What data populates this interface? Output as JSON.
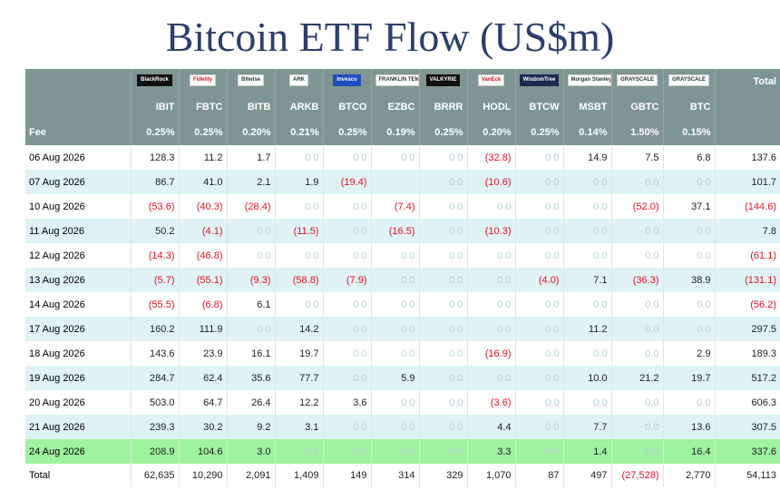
{
  "title": "Bitcoin ETF Flow (US$m)",
  "chart_data": {
    "type": "table",
    "title": "Bitcoin ETF Flow (US$m)",
    "issuers": [
      {
        "logo_text": "BlackRock",
        "icon": "blackrock-logo-icon"
      },
      {
        "logo_text": "Fidelity",
        "icon": "fidelity-logo-icon"
      },
      {
        "logo_text": "Bitwise",
        "icon": "bitwise-logo-icon"
      },
      {
        "logo_text": "ARK",
        "icon": "ark-logo-icon"
      },
      {
        "logo_text": "Invesco",
        "icon": "invesco-logo-icon"
      },
      {
        "logo_text": "FRANKLIN TEMPLETON",
        "icon": "franklin-logo-icon"
      },
      {
        "logo_text": "VALKYRIE",
        "icon": "valkyrie-logo-icon"
      },
      {
        "logo_text": "VanEck",
        "icon": "vaneck-logo-icon"
      },
      {
        "logo_text": "WisdomTree",
        "icon": "wisdomtree-logo-icon"
      },
      {
        "logo_text": "Morgan Stanley",
        "icon": "morgan-stanley-logo-icon"
      },
      {
        "logo_text": "GRAYSCALE",
        "icon": "grayscale-logo-icon"
      },
      {
        "logo_text": "GRAYSCALE",
        "icon": "grayscale-logo-icon"
      }
    ],
    "total_header": "Total",
    "tickers": [
      "IBIT",
      "FBTC",
      "BITB",
      "ARKB",
      "BTCO",
      "EZBC",
      "BRRR",
      "HODL",
      "BTCW",
      "MSBT",
      "GBTC",
      "BTC"
    ],
    "fee_label": "Fee",
    "fees": [
      "0.25%",
      "0.25%",
      "0.20%",
      "0.21%",
      "0.25%",
      "0.19%",
      "0.25%",
      "0.20%",
      "0.25%",
      "0.14%",
      "1.50%",
      "0.15%"
    ],
    "rows": [
      {
        "date": "06 Aug 2026",
        "values": [
          128.3,
          11.2,
          1.7,
          0,
          0,
          0,
          0,
          -32.8,
          0,
          14.9,
          7.5,
          6.8
        ],
        "total": 137.6
      },
      {
        "date": "07 Aug 2026",
        "values": [
          86.7,
          41.0,
          2.1,
          1.9,
          -19.4,
          null,
          0,
          -10.6,
          0,
          0,
          0,
          0
        ],
        "total": 101.7
      },
      {
        "date": "10 Aug 2026",
        "values": [
          -53.6,
          -40.3,
          -28.4,
          0,
          0,
          -7.4,
          0,
          0,
          0,
          0,
          -52.0,
          37.1
        ],
        "total": -144.6
      },
      {
        "date": "11 Aug 2026",
        "values": [
          50.2,
          -4.1,
          0,
          -11.5,
          0,
          -16.5,
          0,
          -10.3,
          0,
          0,
          0,
          0
        ],
        "total": 7.8
      },
      {
        "date": "12 Aug 2026",
        "values": [
          -14.3,
          -46.8,
          0,
          0,
          0,
          0,
          0,
          0,
          0,
          0,
          0,
          0
        ],
        "total": -61.1
      },
      {
        "date": "13 Aug 2026",
        "values": [
          -5.7,
          -55.1,
          -9.3,
          -58.8,
          -7.9,
          0,
          0,
          0,
          -4.0,
          7.1,
          -36.3,
          38.9
        ],
        "total": -131.1
      },
      {
        "date": "14 Aug 2026",
        "values": [
          -55.5,
          -6.8,
          6.1,
          0,
          0,
          0,
          0,
          0,
          0,
          0,
          0,
          0
        ],
        "total": -56.2
      },
      {
        "date": "17 Aug 2026",
        "values": [
          160.2,
          111.9,
          0,
          14.2,
          0,
          0,
          0,
          0,
          0,
          11.2,
          0,
          0
        ],
        "total": 297.5
      },
      {
        "date": "18 Aug 2026",
        "values": [
          143.6,
          23.9,
          16.1,
          19.7,
          0,
          0,
          0,
          -16.9,
          0,
          0,
          0,
          2.9
        ],
        "total": 189.3
      },
      {
        "date": "19 Aug 2026",
        "values": [
          284.7,
          62.4,
          35.6,
          77.7,
          0,
          5.9,
          0,
          0,
          0,
          10.0,
          21.2,
          19.7
        ],
        "total": 517.2
      },
      {
        "date": "20 Aug 2026",
        "values": [
          503.0,
          64.7,
          26.4,
          12.2,
          3.6,
          0,
          0,
          -3.6,
          0,
          0,
          0,
          0
        ],
        "total": 606.3
      },
      {
        "date": "21 Aug 2026",
        "values": [
          239.3,
          30.2,
          9.2,
          3.1,
          0,
          0,
          0,
          4.4,
          0,
          7.7,
          0,
          13.6
        ],
        "total": 307.5
      },
      {
        "date": "24 Aug 2026",
        "values": [
          208.9,
          104.6,
          3.0,
          0,
          0,
          0,
          0,
          3.3,
          0,
          1.4,
          0,
          16.4
        ],
        "total": 337.6
      }
    ],
    "total_row": {
      "label": "Total",
      "values": [
        "62,635",
        "10,290",
        "2,091",
        "1,409",
        "149",
        "314",
        "329",
        "1,070",
        "87",
        "497",
        "(27,528)",
        "2,770"
      ],
      "total": "54,113"
    }
  },
  "colors": {
    "title": "#2c3e6b",
    "header_bg": "#7f9592",
    "row_stripe": "#dff2f4",
    "latest_row": "#9ff29f",
    "negative": "#e0112b",
    "zero": "#b9cfd3"
  }
}
